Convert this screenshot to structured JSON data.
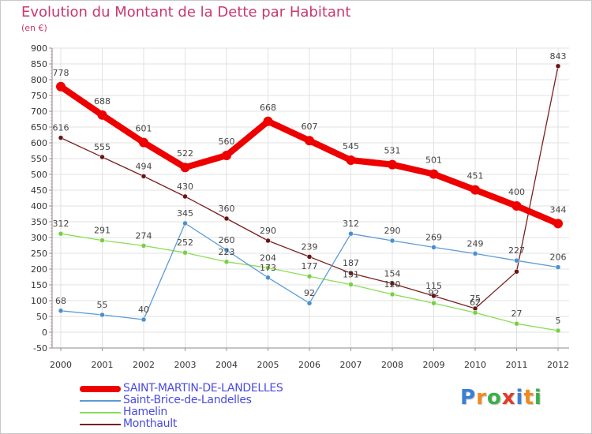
{
  "title": "Evolution du Montant de la Dette par Habitant",
  "unit": "(en €)",
  "logo": {
    "text": "Proxiti",
    "letters": [
      "P",
      "r",
      "o",
      "x",
      "i",
      "t",
      "i"
    ],
    "colors": [
      "#3a7fd4",
      "#f08a1c",
      "#3ab04a",
      "#e23a2a",
      "#3a7fd4",
      "#f08a1c",
      "#3ab04a"
    ]
  },
  "chart_data": {
    "type": "line",
    "x": [
      "2000",
      "2001",
      "2002",
      "2003",
      "2004",
      "2005",
      "2006",
      "2007",
      "2008",
      "2009",
      "2010",
      "2011",
      "2012"
    ],
    "ylim": [
      -50,
      900
    ],
    "yticks": [
      "-50",
      "0",
      "50",
      "100",
      "150",
      "200",
      "250",
      "300",
      "350",
      "400",
      "450",
      "500",
      "550",
      "600",
      "650",
      "700",
      "750",
      "800",
      "850",
      "900"
    ],
    "grid": true,
    "legend_position": "bottom-left",
    "series": [
      {
        "name": "SAINT-MARTIN-DE-LANDELLES",
        "color": "#ee0000",
        "width": 8,
        "marker_color": "#ee0000",
        "marker_r": 6,
        "values": [
          778,
          688,
          601,
          522,
          560,
          668,
          607,
          545,
          531,
          501,
          451,
          400,
          344
        ],
        "labels": [
          "778",
          "688",
          "601",
          "522",
          "560",
          "668",
          "607",
          "545",
          "531",
          "501",
          "451",
          "400",
          "344"
        ]
      },
      {
        "name": "Saint-Brice-de-Landelles",
        "color": "#5b9bd5",
        "width": 1.3,
        "marker_color": "#4a8fd0",
        "marker_r": 3,
        "values": [
          68,
          55,
          40,
          345,
          260,
          173,
          92,
          312,
          290,
          269,
          249,
          227,
          206
        ],
        "labels": [
          "68",
          "55",
          "40",
          "345",
          "260",
          "173",
          "92",
          "312",
          "290",
          "269",
          "249",
          "227",
          "206"
        ]
      },
      {
        "name": "Hamelin",
        "color": "#88dd55",
        "width": 1.3,
        "marker_color": "#77d044",
        "marker_r": 3,
        "values": [
          312,
          291,
          274,
          252,
          223,
          204,
          177,
          151,
          120,
          92,
          62,
          27,
          5
        ],
        "labels": [
          "312",
          "291",
          "274",
          "252",
          "223",
          "204",
          "177",
          "151",
          "120",
          "92",
          "62",
          "27",
          "5"
        ]
      },
      {
        "name": "Monthault",
        "color": "#7a2020",
        "width": 1.3,
        "marker_color": "#6a1414",
        "marker_r": 3,
        "values": [
          616,
          555,
          494,
          430,
          360,
          290,
          239,
          187,
          154,
          115,
          75,
          192,
          843
        ],
        "labels": [
          "616",
          "555",
          "494",
          "430",
          "360",
          "290",
          "239",
          "187",
          "154",
          "115",
          "75",
          "",
          "843"
        ]
      }
    ]
  }
}
